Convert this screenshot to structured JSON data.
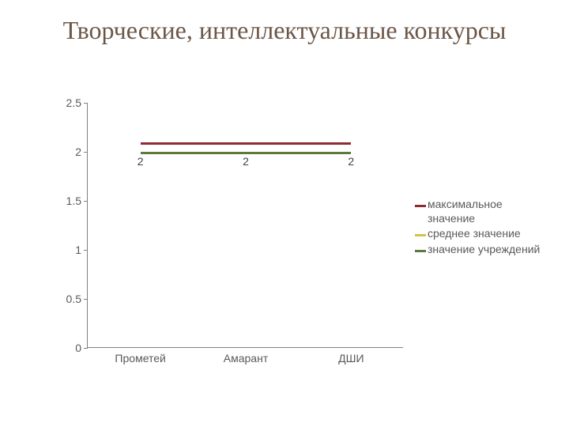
{
  "title": "Творческие, интеллектуальные конкурсы",
  "title_color": "#6b5647",
  "title_fontsize": 32,
  "chart": {
    "type": "line",
    "background_color": "#ffffff",
    "axis_color": "#808080",
    "label_color": "#595959",
    "label_fontsize": 14,
    "ylim": [
      0,
      2.5
    ],
    "ytick_step": 0.5,
    "yticks": [
      "0",
      "0.5",
      "1",
      "1.5",
      "2",
      "2.5"
    ],
    "categories": [
      "Прометей",
      "Амарант",
      "ДШИ"
    ],
    "series": [
      {
        "key": "max",
        "name": "максимальное значение",
        "color": "#8b2b33",
        "line_width": 3,
        "values": [
          2.1,
          2.1,
          2.1
        ]
      },
      {
        "key": "avg",
        "name": "среднее значение",
        "color": "#d6c24a",
        "line_width": 3,
        "values": [
          2,
          2,
          2
        ]
      },
      {
        "key": "inst",
        "name": "значение учреждений",
        "color": "#5b7a3b",
        "line_width": 3,
        "values": [
          2,
          2,
          2
        ],
        "data_labels": [
          "2",
          "2",
          "2"
        ]
      }
    ]
  }
}
